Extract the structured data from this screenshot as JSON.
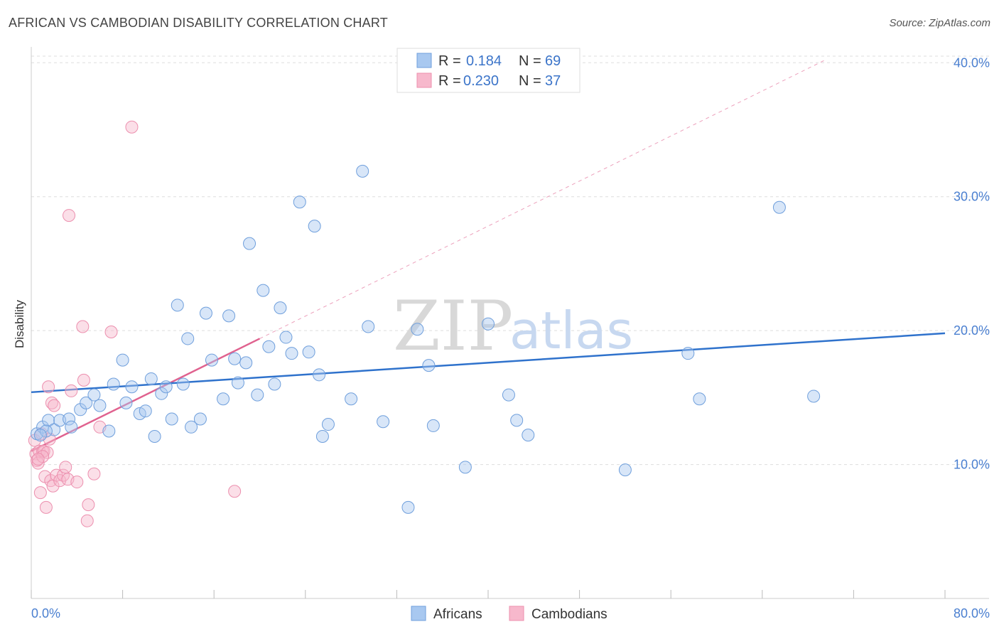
{
  "title": "AFRICAN VS CAMBODIAN DISABILITY CORRELATION CHART",
  "source": "Source: ZipAtlas.com",
  "watermark": {
    "zip": "ZIP",
    "atlas": "atlas"
  },
  "legend": {
    "items": [
      {
        "r_label": "R =",
        "r_value": "0.184",
        "n_label": "N =",
        "n_value": "69"
      },
      {
        "r_label": "R =",
        "r_value": "0.230",
        "n_label": "N =",
        "n_value": "37"
      }
    ]
  },
  "colors": {
    "africans_fill": "#a8c8f0",
    "africans_stroke": "#6f9fdc",
    "africans_line": "#2f72cc",
    "cambodians_fill": "#f7b8cc",
    "cambodians_stroke": "#ec8fae",
    "cambodians_line": "#e0628f",
    "grid": "#dddddd"
  },
  "chart_data": {
    "type": "scatter",
    "title": "AFRICAN VS CAMBODIAN DISABILITY CORRELATION CHART",
    "xlabel": "",
    "ylabel": "Disability",
    "xlim": [
      0,
      80
    ],
    "ylim": [
      0,
      41.5
    ],
    "y_ticks": [
      10,
      20,
      30,
      40
    ],
    "y_tick_labels": [
      "10.0%",
      "20.0%",
      "30.0%",
      "40.0%"
    ],
    "x_tick_labels": [
      "0.0%",
      "80.0%"
    ],
    "grid": true,
    "legend_position": "top-center",
    "series": [
      {
        "name": "Africans",
        "points": [
          [
            0.5,
            12.3
          ],
          [
            1.0,
            12.8
          ],
          [
            1.5,
            13.3
          ],
          [
            2.0,
            12.6
          ],
          [
            2.5,
            13.3
          ],
          [
            3.3,
            13.4
          ],
          [
            3.5,
            12.8
          ],
          [
            4.3,
            14.1
          ],
          [
            4.8,
            14.6
          ],
          [
            5.5,
            15.2
          ],
          [
            6.0,
            14.4
          ],
          [
            6.8,
            12.5
          ],
          [
            7.2,
            16.0
          ],
          [
            8.0,
            17.8
          ],
          [
            8.3,
            14.6
          ],
          [
            8.8,
            15.8
          ],
          [
            9.5,
            13.8
          ],
          [
            10.0,
            14.0
          ],
          [
            10.5,
            16.4
          ],
          [
            10.8,
            12.1
          ],
          [
            11.4,
            15.3
          ],
          [
            11.8,
            15.8
          ],
          [
            12.3,
            13.4
          ],
          [
            12.8,
            21.9
          ],
          [
            13.3,
            16.0
          ],
          [
            13.7,
            19.4
          ],
          [
            14.0,
            12.8
          ],
          [
            14.8,
            13.4
          ],
          [
            15.3,
            21.3
          ],
          [
            15.8,
            17.8
          ],
          [
            16.8,
            14.9
          ],
          [
            17.3,
            21.1
          ],
          [
            17.8,
            17.9
          ],
          [
            18.1,
            16.1
          ],
          [
            18.8,
            17.6
          ],
          [
            19.1,
            26.5
          ],
          [
            19.8,
            15.2
          ],
          [
            20.3,
            23.0
          ],
          [
            20.8,
            18.8
          ],
          [
            21.3,
            16.0
          ],
          [
            21.8,
            21.7
          ],
          [
            22.3,
            19.5
          ],
          [
            22.8,
            18.3
          ],
          [
            23.5,
            29.6
          ],
          [
            24.3,
            18.4
          ],
          [
            24.8,
            27.8
          ],
          [
            25.2,
            16.7
          ],
          [
            25.5,
            12.1
          ],
          [
            26.0,
            13.0
          ],
          [
            28.0,
            14.9
          ],
          [
            29.0,
            31.9
          ],
          [
            29.5,
            20.3
          ],
          [
            30.8,
            13.2
          ],
          [
            33.0,
            6.8
          ],
          [
            33.8,
            20.1
          ],
          [
            34.8,
            17.4
          ],
          [
            35.2,
            12.9
          ],
          [
            38.0,
            9.8
          ],
          [
            40.0,
            20.5
          ],
          [
            41.8,
            15.2
          ],
          [
            42.5,
            13.3
          ],
          [
            43.5,
            12.2
          ],
          [
            52.0,
            9.6
          ],
          [
            57.5,
            18.3
          ],
          [
            58.5,
            14.9
          ],
          [
            65.5,
            29.2
          ],
          [
            68.5,
            15.1
          ],
          [
            1.3,
            12.5
          ],
          [
            0.8,
            12.2
          ]
        ],
        "trend": {
          "x0": 0,
          "y0": 15.4,
          "x1": 80,
          "y1": 19.8
        }
      },
      {
        "name": "Cambodians",
        "points": [
          [
            0.3,
            11.8
          ],
          [
            0.4,
            10.8
          ],
          [
            0.5,
            10.3
          ],
          [
            0.6,
            10.1
          ],
          [
            0.7,
            11.0
          ],
          [
            0.8,
            7.9
          ],
          [
            0.9,
            12.3
          ],
          [
            1.0,
            11.0
          ],
          [
            1.1,
            11.0
          ],
          [
            1.2,
            9.1
          ],
          [
            1.3,
            6.8
          ],
          [
            1.4,
            10.9
          ],
          [
            1.5,
            15.8
          ],
          [
            1.6,
            11.9
          ],
          [
            1.7,
            8.8
          ],
          [
            1.8,
            14.6
          ],
          [
            1.9,
            8.4
          ],
          [
            2.0,
            14.4
          ],
          [
            2.2,
            9.2
          ],
          [
            2.5,
            8.8
          ],
          [
            2.8,
            9.2
          ],
          [
            3.0,
            9.8
          ],
          [
            3.2,
            8.9
          ],
          [
            3.5,
            15.5
          ],
          [
            3.3,
            28.6
          ],
          [
            4.0,
            8.7
          ],
          [
            4.5,
            20.3
          ],
          [
            4.6,
            16.3
          ],
          [
            4.9,
            5.8
          ],
          [
            5.0,
            7.0
          ],
          [
            5.5,
            9.3
          ],
          [
            6.0,
            12.8
          ],
          [
            7.0,
            19.9
          ],
          [
            8.8,
            35.2
          ],
          [
            17.8,
            8.0
          ],
          [
            1.0,
            10.6
          ],
          [
            0.6,
            10.4
          ]
        ],
        "trend": {
          "x0": 0,
          "y0": 11.0,
          "x1": 20,
          "y1": 19.4
        },
        "trend_extension": {
          "x0": 20,
          "y0": 19.4,
          "x1": 69.5,
          "y1": 40.2
        }
      }
    ]
  }
}
